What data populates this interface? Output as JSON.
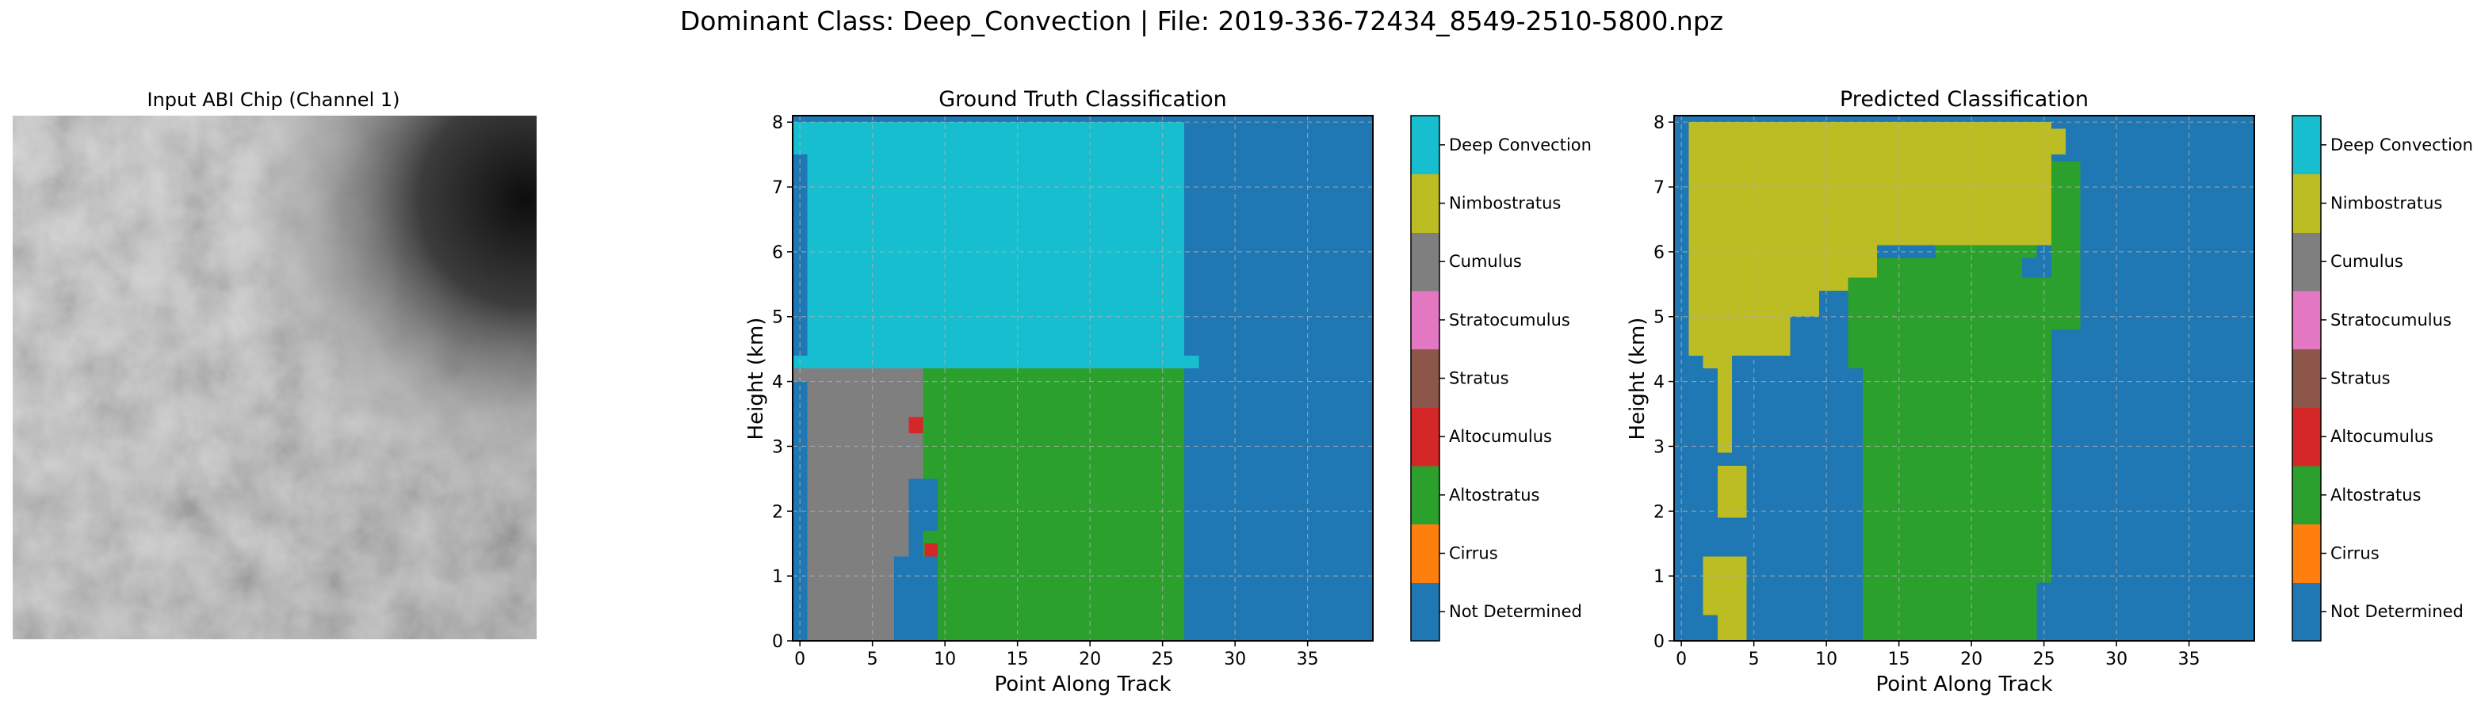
{
  "figure": {
    "suptitle": "Dominant Class: Deep_Convection | File: 2019-336-72434_8549-2510-5800.npz",
    "image_panel_title": "Input ABI Chip (Channel 1)"
  },
  "colorbar": {
    "classes": [
      {
        "label": "Not Determined",
        "color": "#1f77b4"
      },
      {
        "label": "Cirrus",
        "color": "#ff7f0e"
      },
      {
        "label": "Altostratus",
        "color": "#2ca02c"
      },
      {
        "label": "Altocumulus",
        "color": "#d62728"
      },
      {
        "label": "Stratus",
        "color": "#8c564b"
      },
      {
        "label": "Stratocumulus",
        "color": "#e377c2"
      },
      {
        "label": "Cumulus",
        "color": "#7f7f7f"
      },
      {
        "label": "Nimbostratus",
        "color": "#bcbd22"
      },
      {
        "label": "Deep Convection",
        "color": "#17becf"
      }
    ]
  },
  "chart_data": [
    {
      "type": "heatmap",
      "title": "Ground Truth Classification",
      "xlabel": "Point Along Track",
      "ylabel": "Height (km)",
      "xlim": [
        -0.5,
        39.5
      ],
      "ylim": [
        0,
        8.1
      ],
      "xticks": [
        0,
        5,
        10,
        15,
        20,
        25,
        30,
        35
      ],
      "yticks": [
        0,
        1,
        2,
        3,
        4,
        5,
        6,
        7,
        8
      ],
      "grid": true,
      "class_regions": [
        {
          "class": "Not Determined",
          "x": [
            -0.5,
            39.5
          ],
          "y": [
            0,
            8.1
          ]
        },
        {
          "class": "Deep Convection",
          "x": [
            -0.5,
            26.5
          ],
          "y": [
            4.2,
            8.0
          ]
        },
        {
          "class": "Deep Convection",
          "x": [
            26.5,
            27.5
          ],
          "y": [
            4.2,
            4.4
          ]
        },
        {
          "class": "Not Determined",
          "x": [
            -0.5,
            0.5
          ],
          "y": [
            4.4,
            7.5
          ]
        },
        {
          "class": "Cumulus",
          "x": [
            -0.5,
            8.5
          ],
          "y": [
            0,
            4.2
          ]
        },
        {
          "class": "Not Determined",
          "x": [
            -0.5,
            0.5
          ],
          "y": [
            0,
            4.0
          ]
        },
        {
          "class": "Not Determined",
          "x": [
            6.5,
            8.5
          ],
          "y": [
            0,
            1.3
          ]
        },
        {
          "class": "Not Determined",
          "x": [
            7.5,
            8.5
          ],
          "y": [
            1.3,
            2.5
          ]
        },
        {
          "class": "Cumulus",
          "x": [
            0.5,
            0.9
          ],
          "y": [
            1.3,
            1.8
          ]
        },
        {
          "class": "Altostratus",
          "x": [
            8.5,
            26.5
          ],
          "y": [
            0,
            4.2
          ]
        },
        {
          "class": "Not Determined",
          "x": [
            8.5,
            9.5
          ],
          "y": [
            0,
            1.3
          ]
        },
        {
          "class": "Not Determined",
          "x": [
            8.5,
            9.5
          ],
          "y": [
            1.7,
            2.5
          ]
        },
        {
          "class": "Altocumulus",
          "x": [
            7.5,
            8.5
          ],
          "y": [
            3.2,
            3.45
          ]
        },
        {
          "class": "Altocumulus",
          "x": [
            8.6,
            9.5
          ],
          "y": [
            1.3,
            1.5
          ]
        }
      ]
    },
    {
      "type": "heatmap",
      "title": "Predicted Classification",
      "xlabel": "Point Along Track",
      "ylabel": "Height (km)",
      "xlim": [
        -0.5,
        39.5
      ],
      "ylim": [
        0,
        8.1
      ],
      "xticks": [
        0,
        5,
        10,
        15,
        20,
        25,
        30,
        35
      ],
      "yticks": [
        0,
        1,
        2,
        3,
        4,
        5,
        6,
        7,
        8
      ],
      "grid": true,
      "class_regions": [
        {
          "class": "Not Determined",
          "x": [
            -0.5,
            39.5
          ],
          "y": [
            0,
            8.1
          ]
        },
        {
          "class": "Nimbostratus",
          "x": [
            0.5,
            25.5
          ],
          "y": [
            6.1,
            8.0
          ]
        },
        {
          "class": "Nimbostratus",
          "x": [
            25.5,
            26.5
          ],
          "y": [
            7.5,
            7.9
          ]
        },
        {
          "class": "Nimbostratus",
          "x": [
            25.5,
            26.5
          ],
          "y": [
            6.6,
            7.0
          ]
        },
        {
          "class": "Nimbostratus",
          "x": [
            0.5,
            7.5
          ],
          "y": [
            4.4,
            6.1
          ]
        },
        {
          "class": "Nimbostratus",
          "x": [
            7.5,
            9.5
          ],
          "y": [
            5.0,
            6.1
          ]
        },
        {
          "class": "Nimbostratus",
          "x": [
            9.5,
            11.5
          ],
          "y": [
            5.4,
            6.1
          ]
        },
        {
          "class": "Nimbostratus",
          "x": [
            11.5,
            13.5
          ],
          "y": [
            5.6,
            6.1
          ]
        },
        {
          "class": "Nimbostratus",
          "x": [
            1.5,
            3.5
          ],
          "y": [
            4.2,
            4.4
          ]
        },
        {
          "class": "Nimbostratus",
          "x": [
            2.5,
            3.5
          ],
          "y": [
            2.9,
            4.2
          ]
        },
        {
          "class": "Nimbostratus",
          "x": [
            2.5,
            4.5
          ],
          "y": [
            1.9,
            2.7
          ]
        },
        {
          "class": "Nimbostratus",
          "x": [
            1.5,
            4.5
          ],
          "y": [
            0.4,
            1.3
          ]
        },
        {
          "class": "Nimbostratus",
          "x": [
            2.5,
            4.5
          ],
          "y": [
            0,
            0.4
          ]
        },
        {
          "class": "Altostratus",
          "x": [
            11.5,
            25.5
          ],
          "y": [
            0,
            5.6
          ]
        },
        {
          "class": "Altostratus",
          "x": [
            13.5,
            23.5
          ],
          "y": [
            5.6,
            5.9
          ]
        },
        {
          "class": "Altostratus",
          "x": [
            17.5,
            24.5
          ],
          "y": [
            5.9,
            6.1
          ]
        },
        {
          "class": "Altostratus",
          "x": [
            25.5,
            27.5
          ],
          "y": [
            4.8,
            7.4
          ]
        },
        {
          "class": "Not Determined",
          "x": [
            11.5,
            12.5
          ],
          "y": [
            0,
            4.2
          ]
        },
        {
          "class": "Not Determined",
          "x": [
            24.5,
            25.5
          ],
          "y": [
            0,
            0.9
          ]
        }
      ]
    }
  ]
}
